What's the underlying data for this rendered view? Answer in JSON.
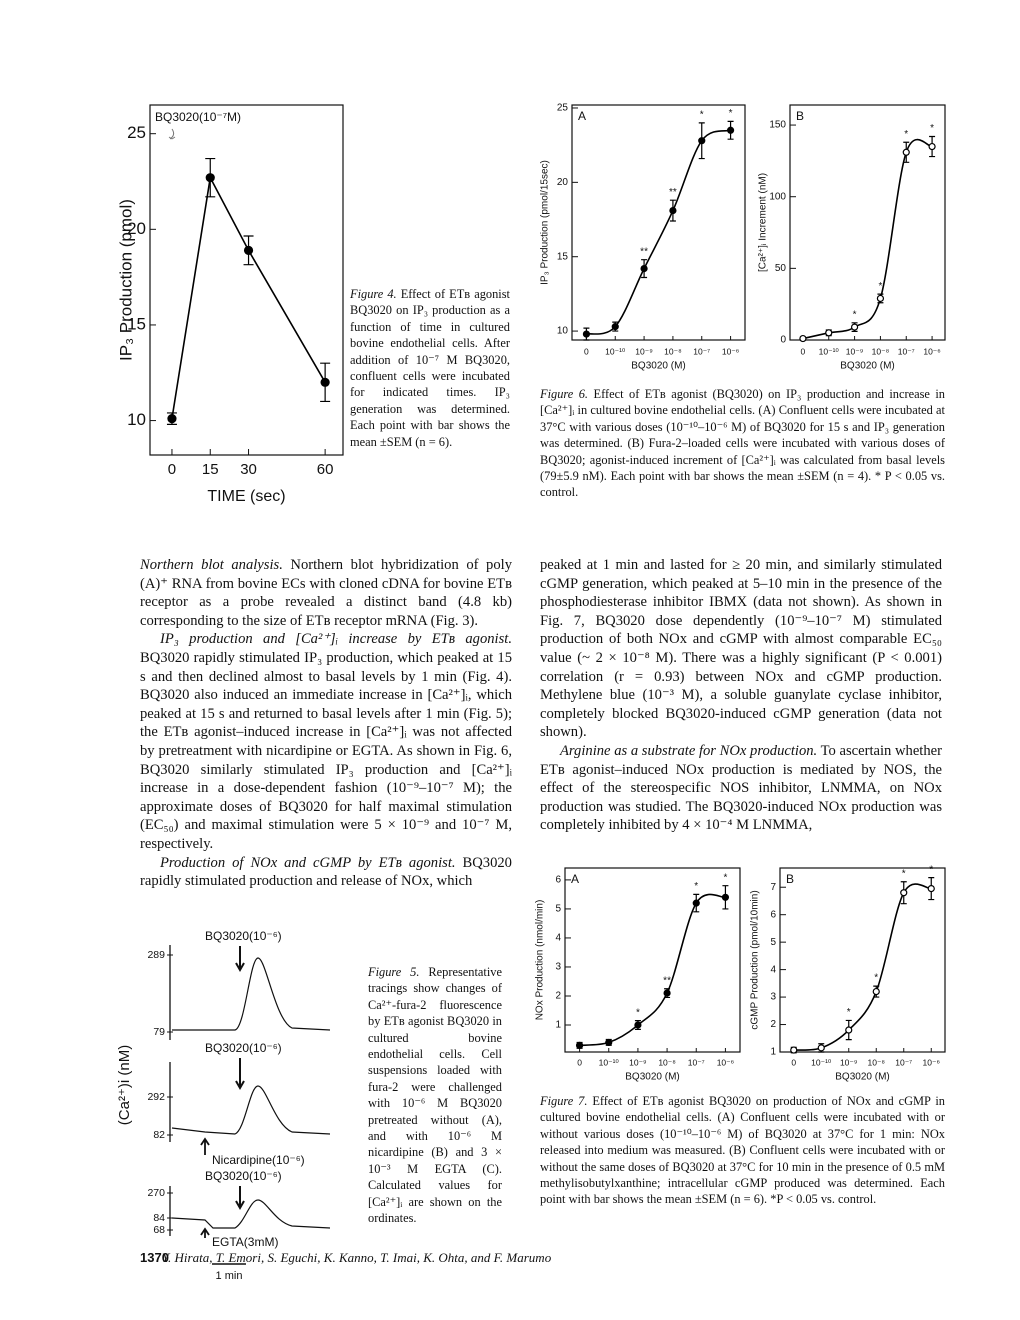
{
  "chart_data": [
    {
      "type": "line",
      "annotation": "BQ3020(10⁻⁷M)",
      "y_label": "IP₃ Production (pmol)",
      "x_label": "TIME (sec)",
      "x": [
        0,
        15,
        30,
        60
      ],
      "values": [
        10.1,
        22.7,
        18.9,
        12.0
      ],
      "errors": [
        0.3,
        1.0,
        0.75,
        1.0
      ],
      "xlim": [
        -8.6,
        67
      ],
      "xticks": [
        0,
        15,
        30,
        60
      ],
      "ylim": [
        8.2,
        26.5
      ],
      "yticks": [
        10,
        15,
        20,
        25
      ],
      "color": "#000000",
      "marker": "filled",
      "curve": "straight"
    },
    {
      "type": "line",
      "panel": "A",
      "y_label": "IP₃ Production (pmol/15sec)",
      "x_label": "BQ3020 (M)",
      "categories": [
        "0",
        "10⁻¹⁰",
        "10⁻⁹",
        "10⁻⁸",
        "10⁻⁷",
        "10⁻⁶"
      ],
      "values": [
        9.8,
        10.3,
        14.2,
        18.1,
        22.8,
        23.5
      ],
      "errors": [
        0.4,
        0.3,
        0.6,
        0.7,
        1.2,
        0.6
      ],
      "ylim": [
        9.4,
        25.2
      ],
      "yticks": [
        10,
        15,
        20,
        25
      ],
      "color": "#000000",
      "marker": "filled",
      "curve": "smooth",
      "annotations": [
        {
          "index": 2,
          "label": "**"
        },
        {
          "index": 3,
          "label": "**"
        },
        {
          "index": 4,
          "label": "*"
        },
        {
          "index": 5,
          "label": "*"
        }
      ]
    },
    {
      "type": "line",
      "panel": "B",
      "y_label": "[Ca²⁺]ᵢ Increment (nM)",
      "x_label": "BQ3020 (M)",
      "categories": [
        "0",
        "10⁻¹⁰",
        "10⁻⁹",
        "10⁻⁸",
        "10⁻⁷",
        "10⁻⁶"
      ],
      "values": [
        1,
        5,
        9,
        29,
        131,
        135
      ],
      "errors": [
        1,
        2,
        3,
        3,
        7,
        7
      ],
      "ylim": [
        0,
        164
      ],
      "yticks": [
        0,
        50,
        100,
        150
      ],
      "color": "#000000",
      "marker": "open",
      "curve": "smooth",
      "annotations": [
        {
          "index": 2,
          "label": "*"
        },
        {
          "index": 3,
          "label": "*"
        },
        {
          "index": 4,
          "label": "*"
        },
        {
          "index": 5,
          "label": "*"
        }
      ]
    },
    {
      "type": "line",
      "panel": "A",
      "y_label": "NOx Production (nmol/min)",
      "x_label": "BQ3020 (M)",
      "categories": [
        "0",
        "10⁻¹⁰",
        "10⁻⁹",
        "10⁻⁸",
        "10⁻⁷",
        "10⁻⁶"
      ],
      "values": [
        0.3,
        0.4,
        1.0,
        2.1,
        5.2,
        5.4
      ],
      "errors": [
        0.1,
        0.1,
        0.15,
        0.15,
        0.3,
        0.4
      ],
      "ylim": [
        0.07,
        6.41
      ],
      "yticks": [
        1,
        2,
        3,
        4,
        5,
        6
      ],
      "color": "#000000",
      "marker": "filled",
      "curve": "smooth",
      "annotations": [
        {
          "index": 2,
          "label": "*"
        },
        {
          "index": 3,
          "label": "**"
        },
        {
          "index": 4,
          "label": "*"
        },
        {
          "index": 5,
          "label": "*"
        }
      ]
    },
    {
      "type": "line",
      "panel": "B",
      "y_label": "cGMP Production (pmol/10min)",
      "x_label": "BQ3020 (M)",
      "categories": [
        "0",
        "10⁻¹⁰",
        "10⁻⁹",
        "10⁻⁸",
        "10⁻⁷",
        "10⁻⁶"
      ],
      "values": [
        1.07,
        1.15,
        1.8,
        3.2,
        6.8,
        6.95
      ],
      "errors": [
        0.1,
        0.15,
        0.35,
        0.2,
        0.4,
        0.4
      ],
      "ylim": [
        1,
        7.7
      ],
      "yticks": [
        1,
        2,
        3,
        4,
        5,
        6,
        7
      ],
      "color": "#000000",
      "marker": "open",
      "curve": "smooth",
      "annotations": [
        {
          "index": 2,
          "label": "*"
        },
        {
          "index": 3,
          "label": "*"
        },
        {
          "index": 4,
          "label": "*"
        },
        {
          "index": 5,
          "label": "*"
        }
      ]
    }
  ],
  "figure5": {
    "y_label": "(Ca²⁺)i (nM)",
    "traces": [
      {
        "label": "BQ3020(10⁻⁶)",
        "ticks": [
          "289",
          "79"
        ]
      },
      {
        "label": "BQ3020(10⁻⁶)",
        "ticks": [
          "292",
          "82"
        ],
        "pretreatment": "Nicardipine(10⁻⁶)"
      },
      {
        "label": "BQ3020(10⁻⁶)",
        "ticks": [
          "270",
          "84",
          "68"
        ],
        "pretreatment": "EGTA(3mM)"
      }
    ],
    "scale_bar": "1 min"
  },
  "captions": {
    "figure4": {
      "label": "Figure 4.",
      "text": "Effect of ETʙ agonist BQ3020 on IP₃ production as a function of time in cultured bovine endothelial cells. After addition of 10⁻⁷ M BQ3020, confluent cells were incubated for indicated times. IP₃ generation was determined. Each point with bar shows the mean ±SEM (n = 6)."
    },
    "figure6": {
      "label": "Figure 6.",
      "text": "Effect of ETʙ agonist (BQ3020) on IP₃ production and increase in [Ca²⁺]ᵢ in cultured bovine endothelial cells. (A) Confluent cells were incubated at 37°C with various doses (10⁻¹⁰–10⁻⁶ M) of BQ3020 for 15 s and IP₃ generation was determined. (B) Fura-2–loaded cells were incubated with various doses of BQ3020; agonist-induced increment of [Ca²⁺]ᵢ was calculated from basal levels (79±5.9 nM). Each point with bar shows the mean ±SEM (n = 4). * P < 0.05 vs. control."
    },
    "figure5": {
      "label": "Figure 5.",
      "text": "Representative tracings show changes of Ca²⁺-fura-2 fluorescence by ETʙ agonist BQ3020 in cultured bovine endothelial cells. Cell suspensions loaded with fura-2 were challenged with 10⁻⁶ M BQ3020 pretreated without (A), and with 10⁻⁶ M nicardipine (B) and 3 × 10⁻³ M EGTA (C). Calculated values for [Ca²⁺]ᵢ are shown on the ordinates."
    },
    "figure7": {
      "label": "Figure 7.",
      "text": "Effect of ETʙ agonist BQ3020 on production of NOx and cGMP in cultured bovine endothelial cells. (A) Confluent cells were incubated with or without various doses (10⁻¹⁰–10⁻⁶ M) of BQ3020 at 37°C for 1 min: NOx released into medium was measured. (B) Confluent cells were incubated with or without the same doses of BQ3020 at 37°C for 10 min in the presence of 0.5 mM methylisobutylxanthine; intracellular cGMP produced was determined. Each point with bar shows the mean ±SEM (n = 6). *P < 0.05 vs. control."
    }
  },
  "body": {
    "left": [
      {
        "heading": "Northern blot analysis.",
        "text": "Northern blot hybridization of poly (A)⁺ RNA from bovine ECs with cloned cDNA for bovine ETʙ receptor as a probe revealed a distinct band (4.8 kb) corresponding to the size of ETʙ receptor mRNA (Fig. 3)."
      },
      {
        "heading": "IP₃ production and [Ca²⁺]ᵢ increase by ETʙ agonist.",
        "text": "BQ3020 rapidly stimulated IP₃ production, which peaked at 15 s and then declined almost to basal levels by 1 min (Fig. 4). BQ3020 also induced an immediate increase in [Ca²⁺]ᵢ, which peaked at 15 s and returned to basal levels after 1 min (Fig. 5); the ETʙ agonist–induced increase in [Ca²⁺]ᵢ was not affected by pretreatment with nicardipine or EGTA. As shown in Fig. 6, BQ3020 similarly stimulated IP₃ production and [Ca²⁺]ᵢ increase in a dose-dependent fashion (10⁻⁹–10⁻⁷ M); the approximate doses of BQ3020 for half maximal stimulation (EC₅₀) and maximal stimulation were 5 × 10⁻⁹ and 10⁻⁷ M, respectively."
      },
      {
        "heading": "Production of NOx and cGMP by ETʙ agonist.",
        "text": "BQ3020 rapidly stimulated production and release of NOx, which"
      }
    ],
    "right": [
      {
        "text": "peaked at 1 min and lasted for ≥ 20 min, and similarly stimulated cGMP generation, which peaked at 5–10 min in the presence of the phosphodiesterase inhibitor IBMX (data not shown). As shown in Fig. 7, BQ3020 dose dependently (10⁻⁹–10⁻⁷ M) stimulated production of both NOx and cGMP with almost comparable EC₅₀ value (~ 2 × 10⁻⁸ M). There was a highly significant (P < 0.001) correlation (r = 0.93) between NOx and cGMP production. Methylene blue (10⁻³ M), a soluble guanylate cyclase inhibitor, completely blocked BQ3020-induced cGMP generation (data not shown)."
      },
      {
        "heading": "Arginine as a substrate for NOx production.",
        "text": "To ascertain whether ETʙ agonist–induced NOx production is mediated by NOS, the effect of the stereospecific NOS inhibitor, LNMMA, on NOx production was studied. The BQ3020-induced NOx production was completely inhibited by 4 × 10⁻⁴ M LNMMA,"
      }
    ]
  },
  "footer": {
    "page": "1370",
    "authors": "Y. Hirata, T. Emori, S. Eguchi, K. Kanno, T. Imai, K. Ohta, and F. Marumo"
  }
}
